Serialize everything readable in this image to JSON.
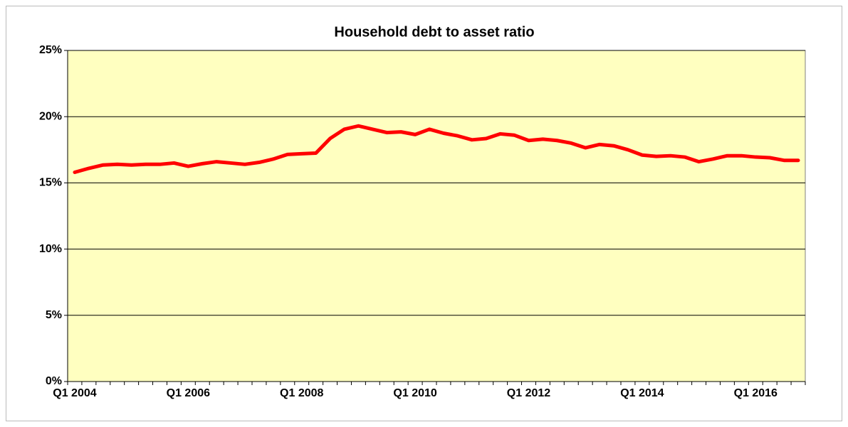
{
  "chart_data": {
    "type": "line",
    "title": "Household debt to asset ratio",
    "categories": [
      "Q1 2004",
      null,
      null,
      null,
      null,
      null,
      null,
      null,
      "Q1 2006",
      null,
      null,
      null,
      null,
      null,
      null,
      null,
      "Q1 2008",
      null,
      null,
      null,
      null,
      null,
      null,
      null,
      "Q1 2010",
      null,
      null,
      null,
      null,
      null,
      null,
      null,
      "Q1 2012",
      null,
      null,
      null,
      null,
      null,
      null,
      null,
      "Q1 2014",
      null,
      null,
      null,
      null,
      null,
      null,
      null,
      "Q1 2016",
      null,
      null,
      null
    ],
    "series": [
      {
        "name": "Household debt to asset ratio",
        "color": "#ff0000",
        "values": [
          15.8,
          16.1,
          16.35,
          16.4,
          16.35,
          16.4,
          16.4,
          16.5,
          16.25,
          16.45,
          16.6,
          16.5,
          16.4,
          16.55,
          16.8,
          17.15,
          17.2,
          17.25,
          18.35,
          19.05,
          19.3,
          19.05,
          18.8,
          18.85,
          18.65,
          19.05,
          18.75,
          18.55,
          18.25,
          18.35,
          18.7,
          18.6,
          18.2,
          18.3,
          18.2,
          18.0,
          17.65,
          17.9,
          17.8,
          17.5,
          17.1,
          17.0,
          17.05,
          16.95,
          16.6,
          16.8,
          17.05,
          17.05,
          16.95,
          16.9,
          16.7,
          16.7
        ]
      }
    ],
    "ylim": [
      0,
      25
    ],
    "yticks": [
      {
        "value": 0,
        "label": "0%"
      },
      {
        "value": 5,
        "label": "5%"
      },
      {
        "value": 10,
        "label": "10%"
      },
      {
        "value": 15,
        "label": "15%"
      },
      {
        "value": 20,
        "label": "20%"
      },
      {
        "value": 25,
        "label": "25%"
      }
    ],
    "grid": true,
    "plot_background": "#ffffc0"
  }
}
